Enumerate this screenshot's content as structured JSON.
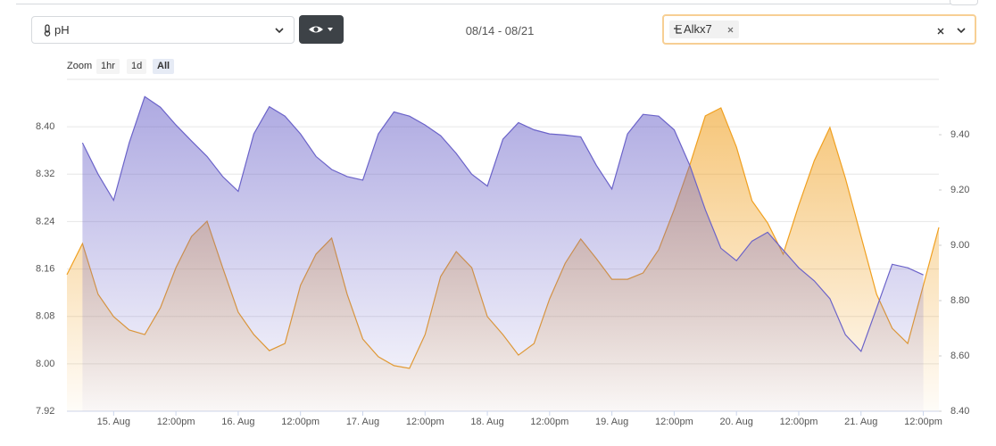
{
  "controls": {
    "date_range": "08/14 - 08/21",
    "zoom_label": "Zoom",
    "zoom_buttons": [
      "1hr",
      "1d",
      "All"
    ]
  },
  "chart_data": {
    "type": "area",
    "x": [
      14.625,
      14.75,
      14.875,
      15,
      15.125,
      15.25,
      15.375,
      15.5,
      15.625,
      15.75,
      15.875,
      16,
      16.125,
      16.25,
      16.375,
      16.5,
      16.625,
      16.75,
      16.875,
      17,
      17.125,
      17.25,
      17.375,
      17.5,
      17.625,
      17.75,
      17.875,
      18,
      18.125,
      18.25,
      18.375,
      18.5,
      18.625,
      18.75,
      18.875,
      19,
      19.125,
      19.25,
      19.375,
      19.5,
      19.625,
      19.75,
      19.875,
      20,
      20.125,
      20.25,
      20.375,
      20.5,
      20.625,
      20.75,
      20.875,
      21,
      21.125,
      21.25,
      21.375,
      21.5,
      21.625
    ],
    "series": [
      {
        "name": "pH",
        "color": "#6b63c9",
        "values": [
          null,
          8.373,
          8.32,
          8.276,
          8.373,
          8.451,
          8.433,
          8.403,
          8.376,
          8.35,
          8.316,
          8.291,
          8.388,
          8.434,
          8.418,
          8.388,
          8.35,
          8.328,
          8.316,
          8.31,
          8.388,
          8.425,
          8.418,
          8.403,
          8.385,
          8.355,
          8.32,
          8.3,
          8.379,
          8.407,
          8.395,
          8.388,
          8.386,
          8.383,
          8.335,
          8.295,
          8.388,
          8.421,
          8.418,
          8.395,
          8.335,
          8.26,
          8.195,
          8.174,
          8.207,
          8.222,
          8.192,
          8.162,
          8.14,
          8.11,
          8.049,
          8.021,
          8.094,
          8.168,
          8.162,
          8.15,
          null
        ]
      },
      {
        "name": "Alkx7",
        "color": "#f0a020",
        "axis": "y2",
        "values": [
          8.894,
          9.006,
          8.823,
          8.742,
          8.694,
          8.677,
          8.774,
          8.919,
          9.032,
          9.087,
          8.919,
          8.758,
          8.677,
          8.619,
          8.645,
          8.855,
          8.968,
          9.026,
          8.823,
          8.661,
          8.597,
          8.565,
          8.555,
          8.677,
          8.887,
          8.977,
          8.919,
          8.742,
          8.677,
          8.603,
          8.645,
          8.806,
          8.935,
          9.023,
          8.952,
          8.877,
          8.877,
          8.9,
          8.984,
          9.129,
          9.29,
          9.468,
          9.497,
          9.355,
          9.161,
          9.081,
          8.968,
          9.145,
          9.306,
          9.426,
          9.242,
          9.032,
          8.823,
          8.7,
          8.645,
          8.855,
          9.065
        ]
      }
    ],
    "xlim": [
      14.625,
      21.625
    ],
    "xticks": [
      {
        "value": 15,
        "label": "15. Aug"
      },
      {
        "value": 15.5,
        "label": "12:00pm"
      },
      {
        "value": 16,
        "label": "16. Aug"
      },
      {
        "value": 16.5,
        "label": "12:00pm"
      },
      {
        "value": 17,
        "label": "17. Aug"
      },
      {
        "value": 17.5,
        "label": "12:00pm"
      },
      {
        "value": 18,
        "label": "18. Aug"
      },
      {
        "value": 18.5,
        "label": "12:00pm"
      },
      {
        "value": 19,
        "label": "19. Aug"
      },
      {
        "value": 19.5,
        "label": "12:00pm"
      },
      {
        "value": 20,
        "label": "20. Aug"
      },
      {
        "value": 20.5,
        "label": "12:00pm"
      },
      {
        "value": 21,
        "label": "21. Aug"
      },
      {
        "value": 21.5,
        "label": "12:00pm"
      }
    ],
    "ylim": [
      7.92,
      8.48
    ],
    "yticks": [
      7.92,
      {
        "value": 8.0,
        "label": "8.00"
      },
      8.08,
      8.16,
      8.24,
      8.32,
      {
        "value": 8.4,
        "label": "8.40"
      }
    ],
    "y2lim": [
      8.4,
      9.6
    ],
    "y2ticks": [
      {
        "value": 8.4,
        "label": "8.40"
      },
      {
        "value": 8.6,
        "label": "8.60"
      },
      {
        "value": 8.8,
        "label": "8.80"
      },
      {
        "value": 9.0,
        "label": "9.00"
      },
      {
        "value": 9.2,
        "label": "9.20"
      },
      {
        "value": 9.4,
        "label": "9.40"
      }
    ],
    "grid": true
  }
}
